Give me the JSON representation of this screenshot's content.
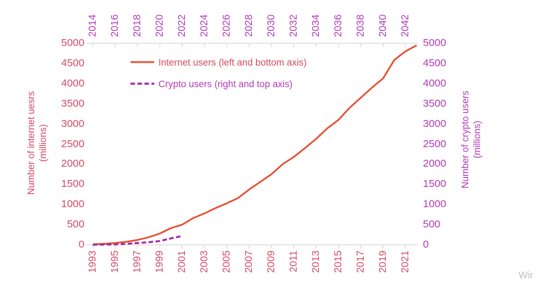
{
  "chart_data": {
    "type": "line",
    "title": "",
    "legend": [
      {
        "label": "Internet users (left and bottom axis)",
        "style": "solid",
        "color": "#e64c2e",
        "text_color": "#d5495f"
      },
      {
        "label": "Crypto users (right and top axis)",
        "style": "dashed",
        "color": "#a428a8",
        "text_color": "#b23ab5"
      }
    ],
    "axes": {
      "bottom": {
        "tick_labels": [
          "1993",
          "1995",
          "1997",
          "1999",
          "2001",
          "2003",
          "2005",
          "2007",
          "2009",
          "2011",
          "2013",
          "2015",
          "2017",
          "2019",
          "2021"
        ],
        "color": "#d54a66",
        "belongs_to": "internet series"
      },
      "top": {
        "tick_labels": [
          "2014",
          "2016",
          "2018",
          "2020",
          "2022",
          "2024",
          "2026",
          "2028",
          "2030",
          "2032",
          "2034",
          "2036",
          "2038",
          "2040",
          "2042"
        ],
        "color": "#b23ab5",
        "belongs_to": "crypto series"
      },
      "left": {
        "title_line1": "Number of internet uesrs",
        "title_line2": "(millions)",
        "tick_labels": [
          "0",
          "500",
          "1000",
          "1500",
          "2000",
          "2500",
          "3000",
          "3500",
          "4000",
          "4500",
          "5000"
        ],
        "range": [
          0,
          5000
        ],
        "color": "#d54a66"
      },
      "right": {
        "title_line1": "Number of crypto users",
        "title_line2": "(millions)",
        "tick_labels": [
          "0",
          "500",
          "1000",
          "1500",
          "2000",
          "2500",
          "3000",
          "3500",
          "4000",
          "4500",
          "5000"
        ],
        "range": [
          0,
          5000
        ],
        "color": "#b23ab5"
      }
    },
    "series": [
      {
        "name": "internet_users_millions",
        "x_axis": "bottom",
        "y_axis": "left",
        "dashed": false,
        "color": "#e64c2e",
        "years": [
          1993,
          1994,
          1995,
          1996,
          1997,
          1998,
          1999,
          2000,
          2001,
          2002,
          2003,
          2004,
          2005,
          2006,
          2007,
          2008,
          2009,
          2010,
          2011,
          2012,
          2013,
          2014,
          2015,
          2016,
          2017,
          2018,
          2019,
          2020,
          2021,
          2022
        ],
        "values": [
          14,
          26,
          45,
          77,
          121,
          188,
          281,
          415,
          502,
          665,
          780,
          913,
          1030,
          1160,
          1373,
          1562,
          1752,
          2000,
          2180,
          2400,
          2630,
          2890,
          3100,
          3400,
          3650,
          3900,
          4130,
          4585,
          4800,
          4950
        ]
      },
      {
        "name": "crypto_users_millions",
        "x_axis": "top",
        "y_axis": "right",
        "dashed": true,
        "color": "#a428a8",
        "years": [
          2014,
          2015,
          2016,
          2017,
          2018,
          2019,
          2020,
          2021,
          2022
        ],
        "values": [
          3,
          6,
          12,
          25,
          45,
          65,
          95,
          160,
          220
        ]
      }
    ],
    "grid": "off",
    "legend_position": "upper-left-inside",
    "axis_line_color": "#d9d9d9",
    "watermark": "Wir",
    "watermark_color": "#b9bfc5"
  }
}
